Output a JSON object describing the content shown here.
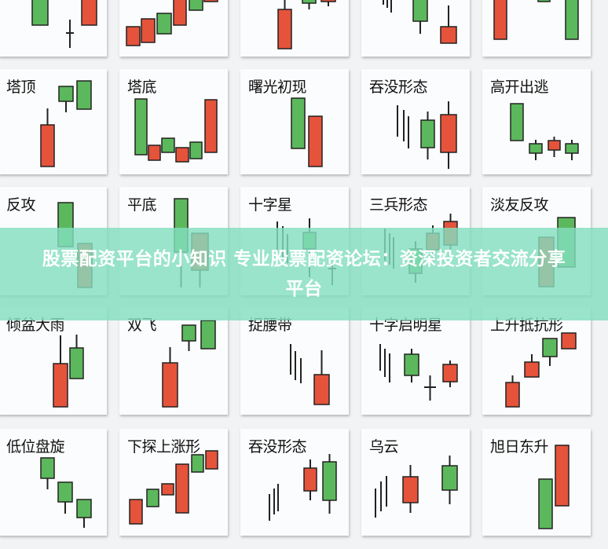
{
  "colors": {
    "bull": "#5cb85c",
    "bear": "#e5533b",
    "outline": "#222222",
    "banner": "#82debe"
  },
  "cards": [
    {
      "label": ""
    },
    {
      "label": ""
    },
    {
      "label": ""
    },
    {
      "label": ""
    },
    {
      "label": ""
    },
    {
      "label": "塔顶"
    },
    {
      "label": "塔底"
    },
    {
      "label": "曙光初现"
    },
    {
      "label": "吞没形态"
    },
    {
      "label": "高开出逃"
    },
    {
      "label": "反攻"
    },
    {
      "label": "平底"
    },
    {
      "label": "十字星"
    },
    {
      "label": "三兵形态"
    },
    {
      "label": "淡友反攻"
    },
    {
      "label": "倾盆大雨"
    },
    {
      "label": "双飞"
    },
    {
      "label": "捉腰带"
    },
    {
      "label": "十字启明星"
    },
    {
      "label": "上升抵抗形"
    },
    {
      "label": "低位盘旋"
    },
    {
      "label": "下探上涨形"
    },
    {
      "label": "吞没形态"
    },
    {
      "label": "乌云"
    },
    {
      "label": "旭日东升"
    }
  ],
  "banner": {
    "line1": "股票配资平台的小知识 专业股票配资论坛：资深投资者交流分享",
    "line2": "平台"
  }
}
